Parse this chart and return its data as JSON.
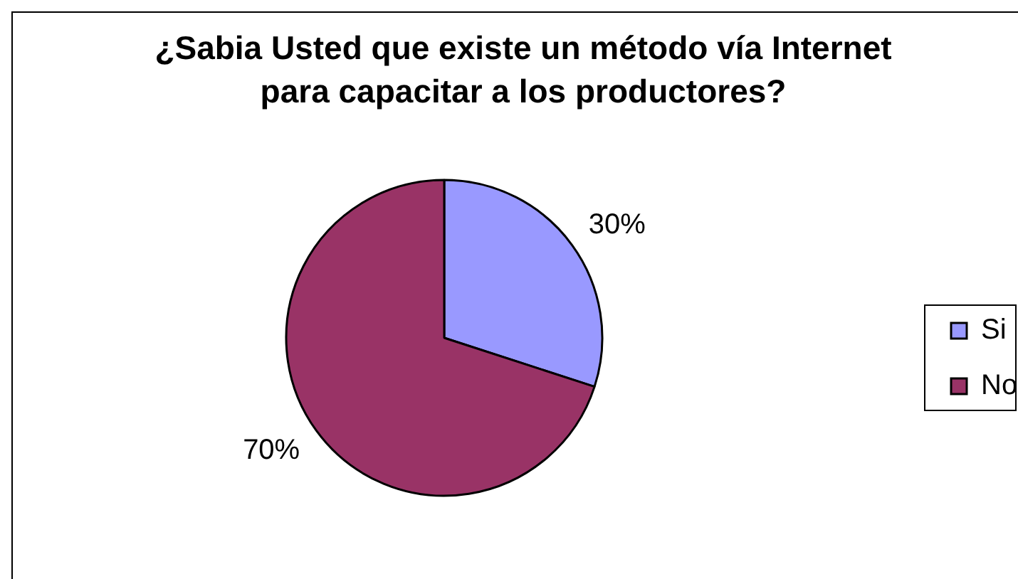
{
  "chart_data": {
    "type": "pie",
    "title": "¿Sabia Usted que existe un método vía Internet para capacitar a los productores?",
    "categories": [
      "Si",
      "No"
    ],
    "values": [
      30,
      70
    ],
    "colors": [
      "#9999ff",
      "#993366"
    ],
    "value_labels": [
      "30%",
      "70%"
    ],
    "legend": "right"
  }
}
